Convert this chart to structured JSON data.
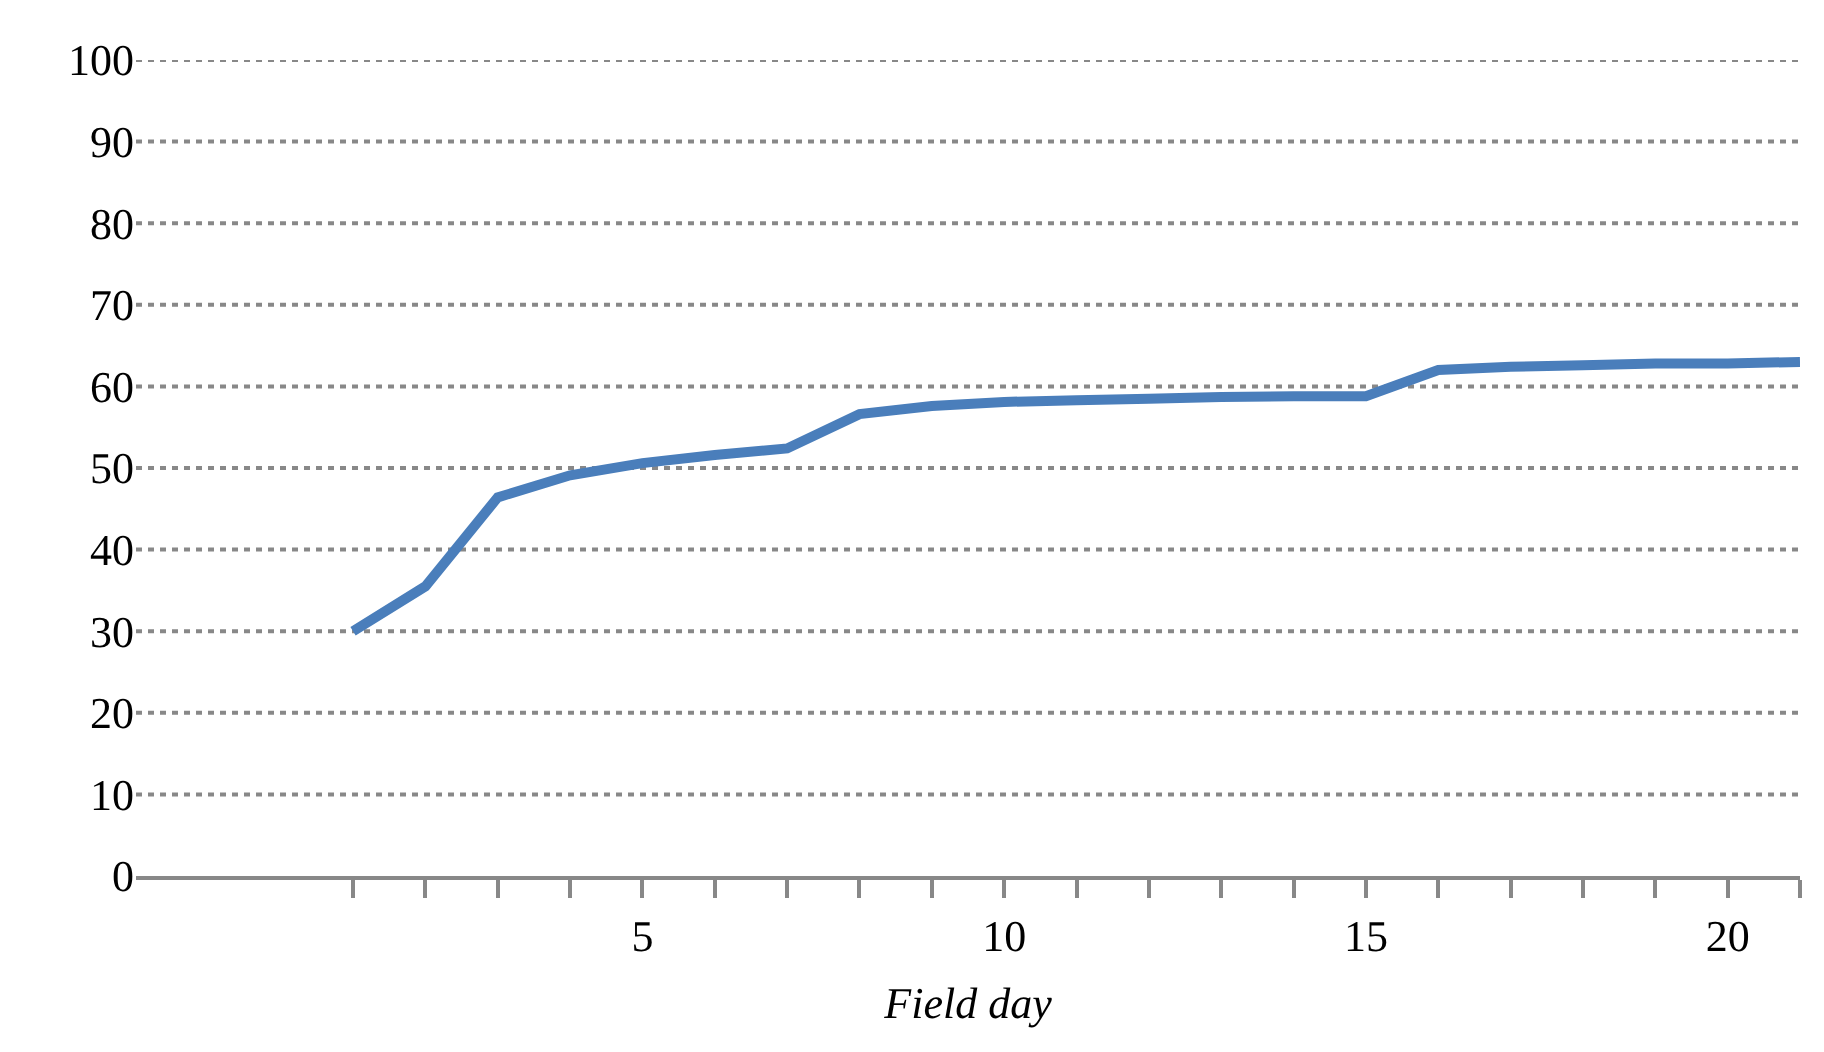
{
  "chart_data": {
    "type": "line",
    "xlabel": "Field day",
    "x": [
      1,
      2,
      3,
      4,
      5,
      6,
      7,
      8,
      9,
      10,
      11,
      12,
      13,
      14,
      15,
      16,
      17,
      18,
      19,
      20,
      21
    ],
    "series": [
      {
        "color": "#4a7ebb",
        "values": [
          30,
          35.5,
          46.4,
          49.1,
          50.6,
          51.6,
          52.4,
          56.6,
          57.6,
          58.1,
          58.3,
          58.5,
          58.7,
          58.8,
          58.8,
          62,
          62.4,
          62.6,
          62.8,
          62.8,
          63
        ]
      }
    ],
    "xlim": [
      -2,
      21
    ],
    "xticks": [
      {
        "value": 1,
        "label": null
      },
      {
        "value": 2,
        "label": null
      },
      {
        "value": 3,
        "label": null
      },
      {
        "value": 4,
        "label": null
      },
      5,
      {
        "value": 6,
        "label": null
      },
      {
        "value": 7,
        "label": null
      },
      {
        "value": 8,
        "label": null
      },
      {
        "value": 9,
        "label": null
      },
      10,
      {
        "value": 11,
        "label": null
      },
      {
        "value": 12,
        "label": null
      },
      {
        "value": 13,
        "label": null
      },
      {
        "value": 14,
        "label": null
      },
      15,
      {
        "value": 16,
        "label": null
      },
      {
        "value": 17,
        "label": null
      },
      {
        "value": 18,
        "label": null
      },
      {
        "value": 19,
        "label": null
      },
      20,
      {
        "value": 21,
        "label": null
      }
    ],
    "ylim": [
      0,
      100
    ],
    "yticks": [
      0,
      10,
      20,
      30,
      40,
      50,
      60,
      70,
      80,
      90,
      100
    ],
    "grid": "y",
    "marker": "none",
    "line_style": "solid"
  }
}
